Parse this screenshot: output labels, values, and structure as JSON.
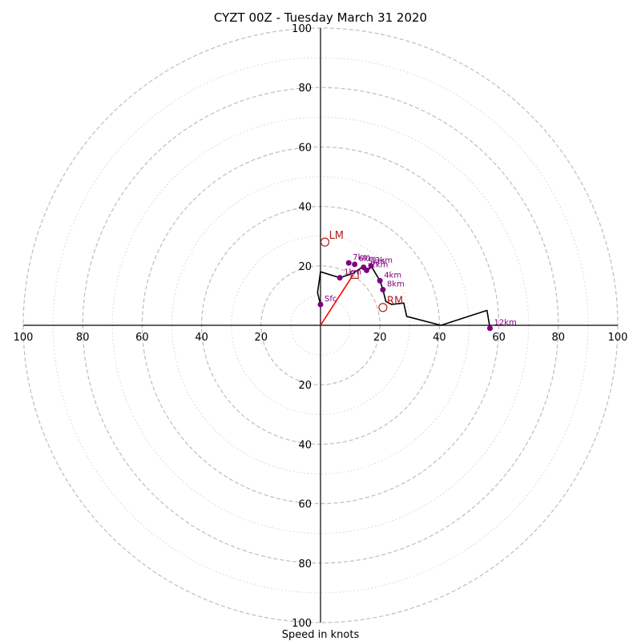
{
  "chart_data": {
    "type": "hodograph",
    "title": "CYZT 00Z - Tuesday March 31 2020",
    "xlabel": "Speed in knots",
    "units": "knots",
    "axis_range": [
      -100,
      100
    ],
    "x_tick_labels": [
      "100",
      "80",
      "60",
      "40",
      "20",
      "20",
      "40",
      "60",
      "80",
      "100"
    ],
    "y_tick_labels": [
      "100",
      "80",
      "60",
      "40",
      "20",
      "20",
      "40",
      "60",
      "80",
      "100"
    ],
    "rings_dashed": [
      20,
      40,
      60,
      80,
      100
    ],
    "rings_dotted": [
      10,
      30,
      50,
      70,
      90
    ],
    "grid": true,
    "series": [
      {
        "style": "profile",
        "color": "#000000",
        "points": [
          {
            "u": 0.0,
            "v": 7.0
          },
          {
            "u": -1.0,
            "v": 11.0
          },
          {
            "u": 0.0,
            "v": 18.0
          },
          {
            "u": 6.5,
            "v": 16.0
          },
          {
            "u": 11.0,
            "v": 17.5
          },
          {
            "u": 14.0,
            "v": 19.5
          },
          {
            "u": 16.5,
            "v": 19.0
          },
          {
            "u": 17.0,
            "v": 20.0
          },
          {
            "u": 20.0,
            "v": 15.0
          },
          {
            "u": 21.0,
            "v": 12.0
          },
          {
            "u": 22.0,
            "v": 8.0
          },
          {
            "u": 24.0,
            "v": 7.0
          },
          {
            "u": 28.0,
            "v": 7.5
          },
          {
            "u": 29.0,
            "v": 3.0
          },
          {
            "u": 40.5,
            "v": 0.0
          },
          {
            "u": 56.0,
            "v": 5.0
          },
          {
            "u": 57.0,
            "v": -1.0
          }
        ]
      },
      {
        "style": "shear-vector",
        "color": "#ff0000",
        "points": [
          {
            "u": 0.0,
            "v": 0.0
          },
          {
            "u": 11.0,
            "v": 17.0
          }
        ]
      }
    ],
    "height_markers": [
      {
        "label": "Sfc",
        "u": 0.0,
        "v": 7.0
      },
      {
        "label": "1km",
        "u": 6.5,
        "v": 16.0
      },
      {
        "label": "2km",
        "u": 15.5,
        "v": 18.5
      },
      {
        "label": "3km",
        "u": 17.0,
        "v": 20.0
      },
      {
        "label": "4km",
        "u": 20.0,
        "v": 15.0
      },
      {
        "label": "5km",
        "u": 14.5,
        "v": 19.5
      },
      {
        "label": "6km",
        "u": 11.5,
        "v": 20.5
      },
      {
        "label": "7km",
        "u": 9.5,
        "v": 21.0
      },
      {
        "label": "8km",
        "u": 21.0,
        "v": 12.0
      },
      {
        "label": "12km",
        "u": 57.0,
        "v": -1.0
      }
    ],
    "storm_motions": [
      {
        "label": "LM",
        "u": 1.5,
        "v": 28.0
      },
      {
        "label": "RM",
        "u": 21.0,
        "v": 6.0
      }
    ],
    "mean_wind": {
      "u": 11.5,
      "v": 17.0
    }
  }
}
